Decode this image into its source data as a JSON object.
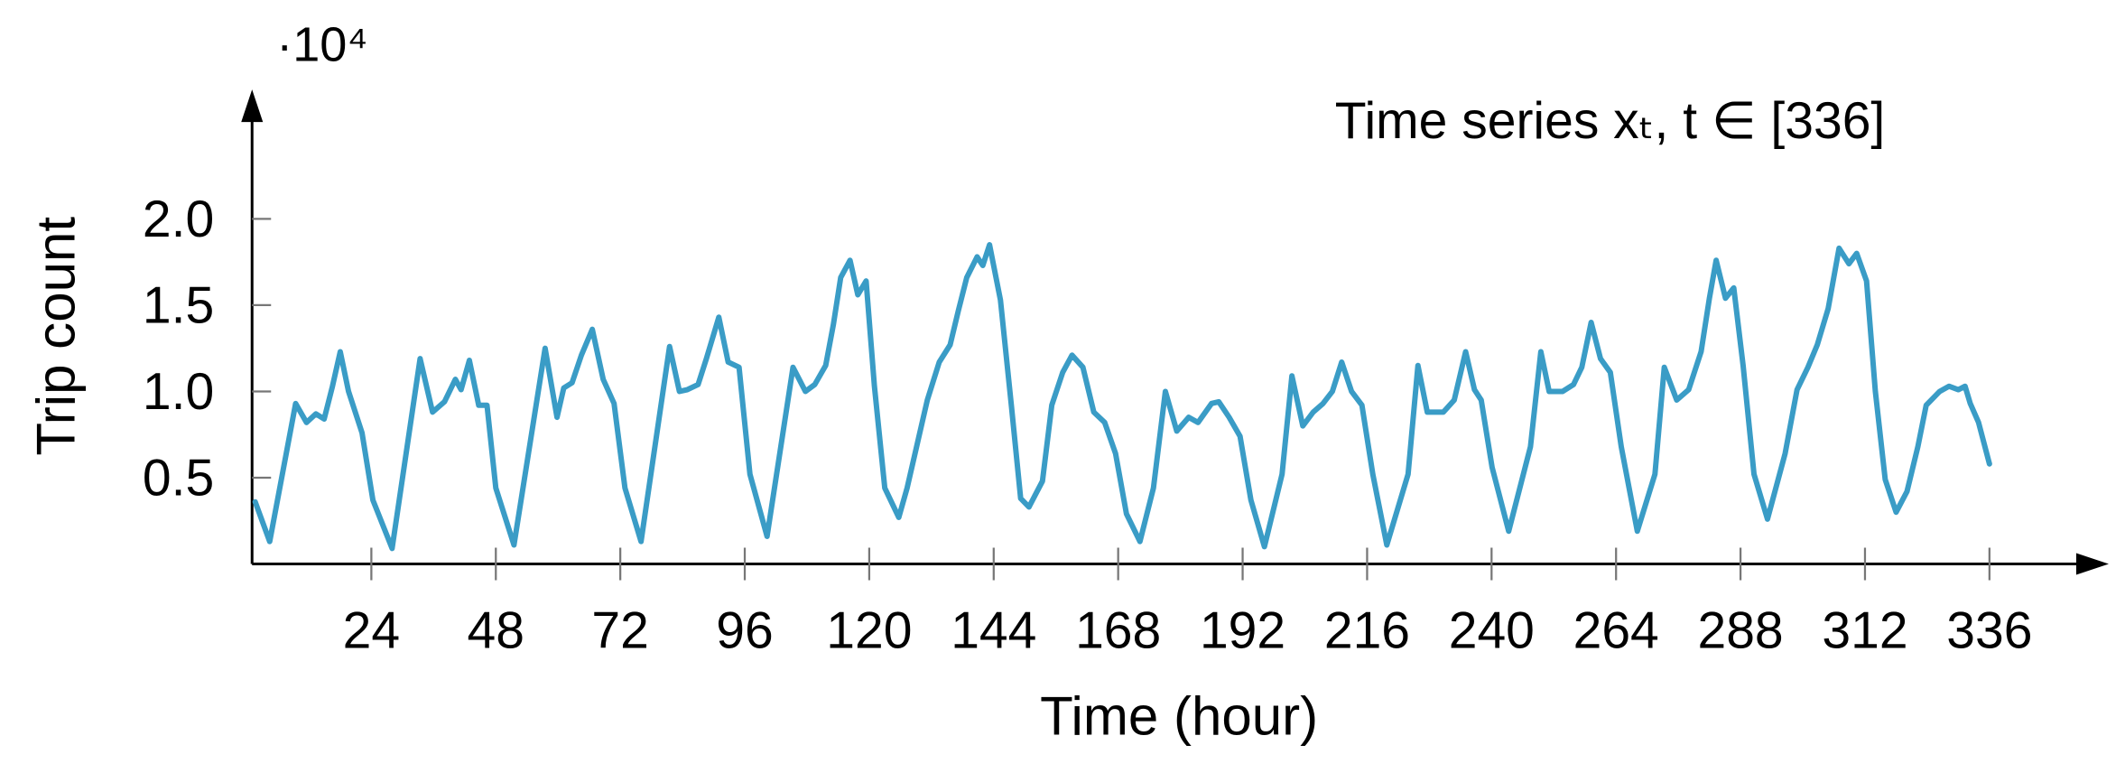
{
  "chart_data": {
    "type": "line",
    "annotation": "Time series xₜ, t ∈ [336]",
    "x_label": "Time (hour)",
    "y_label": "Trip count",
    "y_scale_label": "·10⁴",
    "xlim": [
      1,
      359
    ],
    "ylim": [
      0,
      2.75
    ],
    "xticks": [
      24,
      48,
      72,
      96,
      120,
      144,
      168,
      192,
      216,
      240,
      264,
      288,
      312,
      336
    ],
    "yticks": [
      0.5,
      {
        "value": 1,
        "label": "1.0"
      },
      1.5,
      {
        "value": 2,
        "label": "2.0"
      }
    ],
    "x": [
      1.6,
      4.4,
      9.4,
      11.5,
      13.3,
      14.9,
      16.5,
      18,
      19.6,
      22.2,
      24.3,
      28,
      33.4,
      35.8,
      38.1,
      40.2,
      41.3,
      42.9,
      44.7,
      46.3,
      48,
      51.5,
      57.5,
      59.8,
      61.1,
      62.7,
      64.5,
      66.6,
      68.7,
      70.8,
      72.9,
      76,
      81.5,
      83.4,
      84.9,
      87,
      88.6,
      91,
      92.8,
      94.9,
      97,
      100.3,
      105.3,
      107.7,
      109.5,
      111.6,
      113.1,
      114.5,
      116.3,
      117.8,
      119.4,
      121,
      123,
      125.7,
      127.3,
      131.2,
      133.5,
      135.6,
      137.2,
      138.8,
      140.8,
      141.9,
      143.2,
      145.3,
      147.4,
      149.2,
      150.8,
      153.4,
      155.2,
      157.3,
      159.1,
      161.2,
      163.3,
      165.4,
      167.5,
      169.6,
      172.2,
      174.8,
      177.1,
      179.3,
      181.6,
      183.4,
      186,
      187.4,
      189.4,
      191.5,
      193.6,
      196.2,
      199.6,
      201.5,
      203.6,
      205.6,
      207.5,
      209.3,
      211.1,
      213,
      215,
      217.1,
      219.8,
      223.9,
      225.8,
      227.6,
      230.7,
      232.8,
      235,
      236.7,
      238,
      240.1,
      243.3,
      247.5,
      249.5,
      251.1,
      253.7,
      255.8,
      257.4,
      259.2,
      261,
      262.9,
      265,
      268.1,
      271.5,
      273.3,
      275.7,
      278,
      280.4,
      282,
      283.3,
      285.1,
      286.7,
      288.5,
      290.6,
      293.2,
      296.6,
      298.9,
      301,
      302.8,
      304.9,
      307,
      308.9,
      310.4,
      312.3,
      314,
      315.9,
      318,
      320.1,
      322.2,
      323.8,
      326.4,
      328.2,
      330,
      331.3,
      332.3,
      333.9,
      336
    ],
    "series": [
      {
        "color": "#3a9cc6",
        "values": [
          0.36,
          0.13,
          0.93,
          0.82,
          0.87,
          0.84,
          1.03,
          1.23,
          1.0,
          0.76,
          0.37,
          0.09,
          1.19,
          0.88,
          0.94,
          1.07,
          1.01,
          1.18,
          0.92,
          0.92,
          0.44,
          0.11,
          1.25,
          0.85,
          1.02,
          1.05,
          1.21,
          1.36,
          1.07,
          0.93,
          0.44,
          0.13,
          1.26,
          1.0,
          1.01,
          1.04,
          1.19,
          1.43,
          1.17,
          1.14,
          0.52,
          0.16,
          1.14,
          1.0,
          1.04,
          1.15,
          1.39,
          1.66,
          1.76,
          1.56,
          1.64,
          1.03,
          0.44,
          0.27,
          0.44,
          0.95,
          1.17,
          1.27,
          1.47,
          1.66,
          1.78,
          1.73,
          1.85,
          1.53,
          0.92,
          0.38,
          0.33,
          0.48,
          0.92,
          1.11,
          1.21,
          1.14,
          0.88,
          0.82,
          0.64,
          0.29,
          0.13,
          0.44,
          1.0,
          0.77,
          0.85,
          0.82,
          0.93,
          0.94,
          0.85,
          0.74,
          0.37,
          0.1,
          0.52,
          1.09,
          0.8,
          0.88,
          0.93,
          1.0,
          1.17,
          1.0,
          0.92,
          0.52,
          0.11,
          0.52,
          1.15,
          0.88,
          0.88,
          0.95,
          1.23,
          1.01,
          0.95,
          0.56,
          0.19,
          0.68,
          1.23,
          1.0,
          1.0,
          1.04,
          1.14,
          1.4,
          1.19,
          1.11,
          0.68,
          0.19,
          0.52,
          1.14,
          0.95,
          1.01,
          1.23,
          1.54,
          1.76,
          1.54,
          1.6,
          1.15,
          0.52,
          0.26,
          0.64,
          1.01,
          1.14,
          1.27,
          1.48,
          1.83,
          1.74,
          1.8,
          1.64,
          1.0,
          0.49,
          0.3,
          0.42,
          0.68,
          0.92,
          1.0,
          1.03,
          1.01,
          1.03,
          0.93,
          0.82,
          0.58
        ]
      }
    ]
  }
}
